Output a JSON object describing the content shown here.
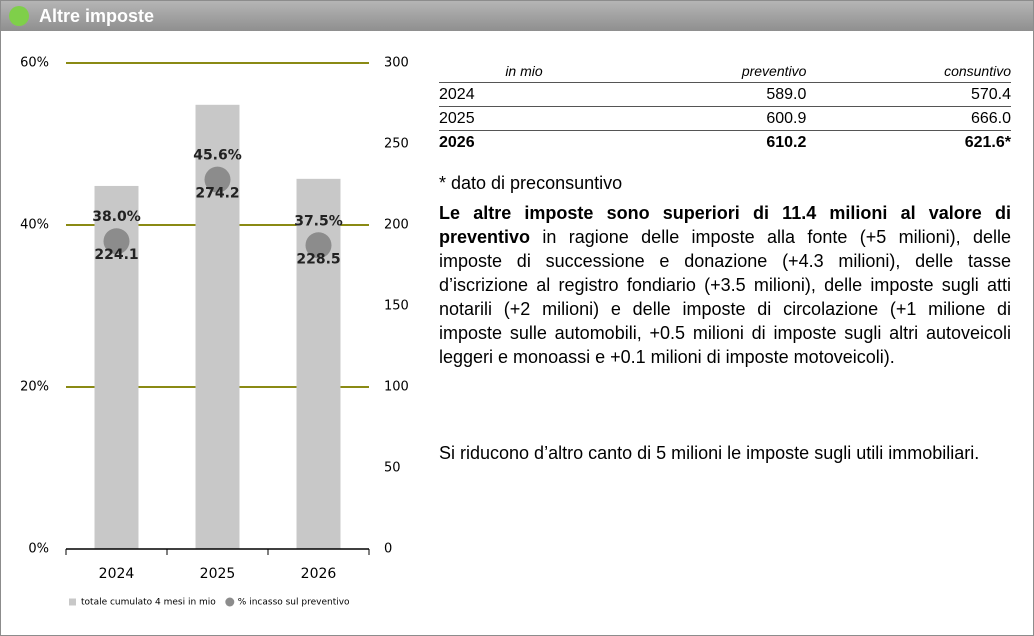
{
  "header": {
    "title": "Altre imposte"
  },
  "chart_data": {
    "type": "bar",
    "categories": [
      "2024",
      "2025",
      "2026"
    ],
    "series": [
      {
        "name": "totale cumulato 4 mesi in mio",
        "type": "bar",
        "axis": "y2",
        "color": "#c8c8c8",
        "values": [
          224.1,
          274.2,
          228.5
        ]
      },
      {
        "name": "% incasso sul preventivo",
        "type": "scatter",
        "color": "#8c8c8c",
        "values": [
          38.0,
          45.6,
          37.5
        ],
        "value_labels": [
          "38.0%",
          "45.6%",
          "37.5%"
        ]
      }
    ],
    "ylim": [
      0,
      60
    ],
    "yticks": [
      {
        "value": 0,
        "label": "0%"
      },
      {
        "value": 20,
        "label": "20%"
      },
      {
        "value": 40,
        "label": "40%"
      },
      {
        "value": 60,
        "label": "60%"
      }
    ],
    "y2lim": [
      0,
      300
    ],
    "y2ticks": [
      0,
      50,
      100,
      150,
      200,
      250,
      300
    ],
    "grid": true,
    "grid_color": "#8a8a14",
    "legend": "bottom"
  },
  "table": {
    "header": [
      "in mio",
      "preventivo",
      "consuntivo"
    ],
    "rows": [
      [
        "2024",
        "589.0",
        "570.4"
      ],
      [
        "2025",
        "600.9",
        "666.0"
      ],
      [
        "2026",
        "610.2",
        "621.6*"
      ]
    ]
  },
  "footnote": "* dato di preconsuntivo",
  "paragraphs": [
    {
      "bold": "Le altre imposte sono superiori di 11.4 milioni al valore di preventivo",
      "text": " in ragione delle imposte alla fonte (+5 milioni), delle imposte di successione e donazione (+4.3 milioni), delle tasse d’iscrizione al registro fondiario (+3.5 milioni), delle imposte sugli atti notarili (+2 milioni) e delle imposte di circolazione (+1 milione di imposte sulle automobili, +0.5 milioni di imposte sugli altri autoveicoli leggeri e monoassi e +0.1 milioni di imposte motoveicoli)."
    },
    {
      "text": "Si riducono d’altro canto di 5 milioni le imposte sugli utili immobiliari."
    }
  ]
}
